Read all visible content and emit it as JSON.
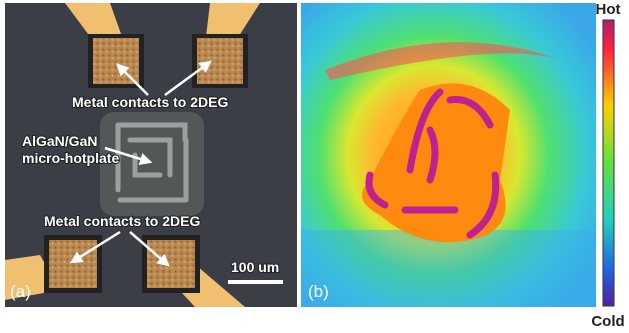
{
  "panel_a": {
    "label": "(a)",
    "annotations": [
      "Metal contacts to 2DEG",
      "AlGaN/GaN",
      "micro-hotplate",
      "Metal contacts to 2DEG"
    ],
    "scale_bar": "100 um"
  },
  "panel_b": {
    "label": "(b)"
  },
  "colorbar": {
    "top": "Hot",
    "bottom": "Cold"
  }
}
